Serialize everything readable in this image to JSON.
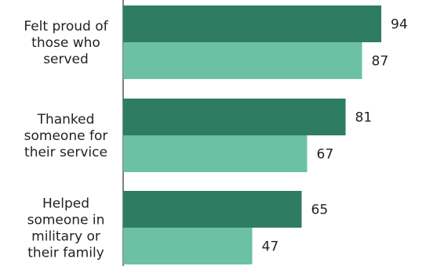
{
  "chart_data": {
    "type": "bar",
    "orientation": "horizontal",
    "categories": [
      [
        "Felt proud of",
        "those who",
        "served"
      ],
      [
        "Thanked",
        "someone for",
        "their service"
      ],
      [
        "Helped",
        "someone in",
        "military or",
        "their family"
      ]
    ],
    "series": [
      {
        "color": "#2e7d62",
        "values": [
          94,
          81,
          65
        ]
      },
      {
        "color": "#6cc1a5",
        "values": [
          87,
          67,
          47
        ]
      }
    ],
    "xlim": [
      0,
      100
    ],
    "grid": false,
    "legend": "none"
  }
}
